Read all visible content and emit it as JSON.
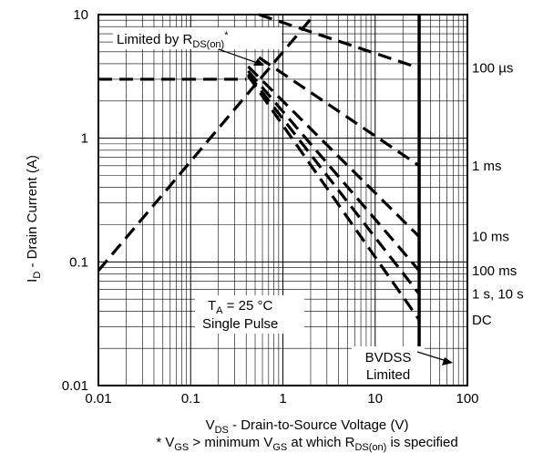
{
  "chart_data": {
    "type": "line",
    "x_scale": "log",
    "y_scale": "log",
    "xlim": [
      0.01,
      100
    ],
    "ylim": [
      0.01,
      10
    ],
    "grid": true,
    "xlabel": {
      "main": "V",
      "sub": "DS",
      "rest": " - Drain-to-Source Voltage (V)"
    },
    "ylabel": {
      "main": "I",
      "sub": "D",
      "rest": " - Drain Current (A)"
    },
    "x_ticks": [
      {
        "value": 0.01,
        "label": "0.01"
      },
      {
        "value": 0.1,
        "label": "0.1"
      },
      {
        "value": 1,
        "label": "1"
      },
      {
        "value": 10,
        "label": "10"
      },
      {
        "value": 100,
        "label": "100"
      }
    ],
    "y_ticks": [
      {
        "value": 0.01,
        "label": "0.01"
      },
      {
        "value": 0.1,
        "label": "0.1"
      },
      {
        "value": 1,
        "label": "1"
      },
      {
        "value": 10,
        "label": "10"
      }
    ],
    "footnote": {
      "p1": "* V",
      "s1": "GS",
      "p2": " > minimum V",
      "s2": "GS",
      "p3": " at which R",
      "s3": "DS(on)",
      "p4": " is specified"
    },
    "rds_limit_line": {
      "x": [
        0.01,
        2.2
      ],
      "y": [
        0.085,
        10
      ]
    },
    "current_limit_line": {
      "x": [
        0.01,
        0.4
      ],
      "y": [
        3.0,
        3.0
      ]
    },
    "bvdss_line": {
      "x": [
        30,
        30
      ],
      "y": [
        0.01,
        10
      ]
    },
    "series": [
      {
        "name": "100 µs",
        "x": [
          0.55,
          30
        ],
        "y": [
          10,
          3.7
        ]
      },
      {
        "name": "1 ms",
        "x": [
          0.55,
          30
        ],
        "y": [
          4.5,
          0.6
        ]
      },
      {
        "name": "10 ms",
        "x": [
          0.42,
          30
        ],
        "y": [
          3.8,
          0.16
        ]
      },
      {
        "name": "100 ms",
        "x": [
          0.42,
          30
        ],
        "y": [
          3.5,
          0.085
        ]
      },
      {
        "name": "1 s, 10 s",
        "x": [
          0.42,
          30
        ],
        "y": [
          3.3,
          0.055
        ]
      },
      {
        "name": "DC",
        "x": [
          0.42,
          30
        ],
        "y": [
          3.2,
          0.034
        ]
      }
    ],
    "annotations": {
      "rds": {
        "text": "Limited by R",
        "sub": "DS(on)",
        "sup": "*"
      },
      "ta": {
        "p1": "T",
        "sub": "A",
        "p2": " = 25 °C"
      },
      "pulse": "Single Pulse",
      "bvdss1": "BVDSS",
      "bvdss2": "Limited"
    }
  }
}
